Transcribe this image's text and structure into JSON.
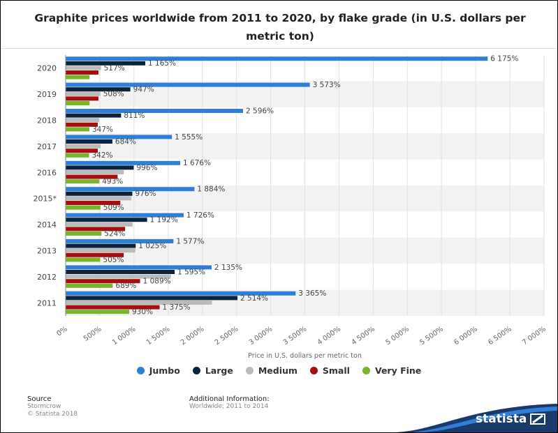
{
  "title": "Graphite prices worldwide from 2011 to 2020, by flake grade (in U.S. dollars per metric ton)",
  "chart_data": {
    "type": "bar",
    "orientation": "horizontal",
    "categories": [
      "2020",
      "2019",
      "2018",
      "2017",
      "2016",
      "2015*",
      "2014",
      "2013",
      "2012",
      "2011"
    ],
    "series": [
      {
        "name": "Jumbo",
        "values": [
          6175,
          3573,
          2596,
          1555,
          1676,
          1884,
          1726,
          1577,
          2135,
          3365
        ]
      },
      {
        "name": "Large",
        "values": [
          1165,
          947,
          811,
          684,
          996,
          976,
          1192,
          1025,
          1595,
          2514
        ]
      },
      {
        "name": "Medium",
        "values": [
          517,
          508,
          490,
          512,
          850,
          960,
          980,
          1020,
          1540,
          2140
        ]
      },
      {
        "name": "Small",
        "values": [
          480,
          480,
          470,
          470,
          760,
          800,
          870,
          850,
          1089,
          1375
        ]
      },
      {
        "name": "Very Fine",
        "values": [
          350,
          350,
          347,
          342,
          493,
          509,
          524,
          505,
          689,
          930
        ]
      }
    ],
    "data_labels": [
      [
        "6 175%",
        "1 165%",
        "517%",
        null,
        null
      ],
      [
        "3 573%",
        "947%",
        "508%",
        null,
        null
      ],
      [
        "2 596%",
        "811%",
        null,
        null,
        "347%"
      ],
      [
        "1 555%",
        "684%",
        null,
        null,
        "342%"
      ],
      [
        "1 676%",
        "996%",
        null,
        null,
        "493%"
      ],
      [
        "1 884%",
        "976%",
        null,
        null,
        "509%"
      ],
      [
        "1 726%",
        "1 192%",
        null,
        null,
        "524%"
      ],
      [
        "1 577%",
        "1 025%",
        null,
        null,
        "505%"
      ],
      [
        "2 135%",
        "1 595%",
        null,
        "1 089%",
        "689%"
      ],
      [
        "3 365%",
        "2 514%",
        null,
        "1 375%",
        "930%"
      ]
    ],
    "x_ticks": [
      "0%",
      "500%",
      "1 000%",
      "1 500%",
      "2 000%",
      "2 500%",
      "3 000%",
      "3 500%",
      "4 000%",
      "4 500%",
      "5 000%",
      "5 500%",
      "6 000%",
      "6 500%",
      "7 000%"
    ],
    "xlim": [
      0,
      7000
    ],
    "xlabel": "Price in U.S. dollars per metric ton",
    "ylabel": "",
    "grid": true,
    "legend_position": "bottom",
    "colors": [
      "#2f7ed8",
      "#0d233a",
      "#bbbbbb",
      "#a60f0f",
      "#77b52a"
    ]
  },
  "footer": {
    "source_heading": "Source",
    "source_lines": [
      "Stormcrow",
      "© Statista 2018"
    ],
    "info_heading": "Additional Information:",
    "info_lines": [
      "Worldwide; 2011 to 2014"
    ]
  },
  "brand": {
    "name": "statista",
    "color": "#1a3a6b"
  }
}
